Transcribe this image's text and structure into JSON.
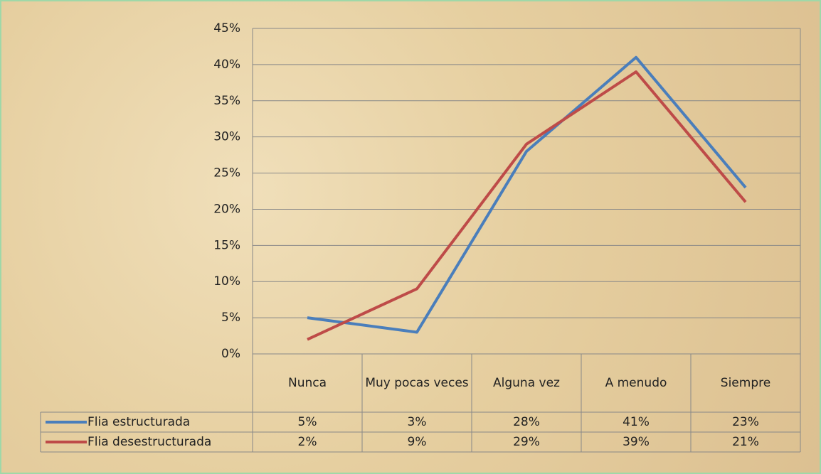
{
  "chart_data": {
    "type": "line",
    "categories": [
      "Nunca",
      "Muy pocas veces",
      "Alguna vez",
      "A menudo",
      "Siempre"
    ],
    "series": [
      {
        "name": "Flia estructurada",
        "color": "#4a7ebb",
        "values": [
          5,
          3,
          28,
          41,
          23
        ],
        "value_labels": [
          "5%",
          "3%",
          "28%",
          "41%",
          "23%"
        ]
      },
      {
        "name": "Flia desestructurada",
        "color": "#be4b48",
        "values": [
          2,
          9,
          29,
          39,
          21
        ],
        "value_labels": [
          "2%",
          "9%",
          "29%",
          "39%",
          "21%"
        ]
      }
    ],
    "ylim": [
      0,
      45
    ],
    "yticks": [
      {
        "value": 0,
        "label": "0%"
      },
      {
        "value": 5,
        "label": "5%"
      },
      {
        "value": 10,
        "label": "10%"
      },
      {
        "value": 15,
        "label": "15%"
      },
      {
        "value": 20,
        "label": "20%"
      },
      {
        "value": 25,
        "label": "25%"
      },
      {
        "value": 30,
        "label": "30%"
      },
      {
        "value": 35,
        "label": "35%"
      },
      {
        "value": 40,
        "label": "40%"
      },
      {
        "value": 45,
        "label": "45%"
      }
    ],
    "grid": true
  }
}
